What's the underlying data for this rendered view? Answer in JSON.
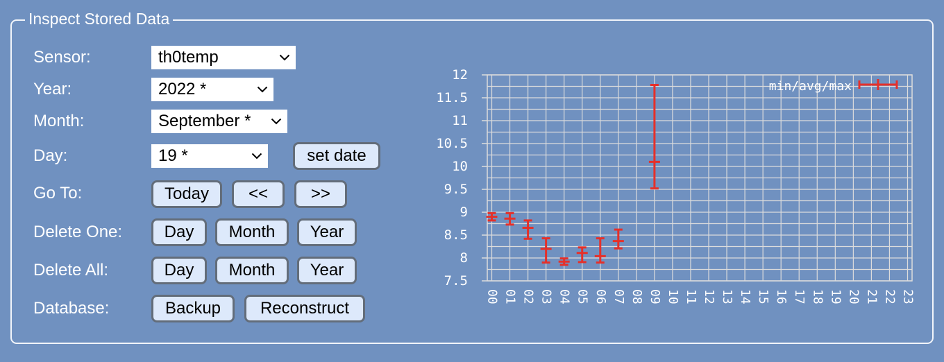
{
  "panel": {
    "title": "Inspect Stored Data"
  },
  "form": {
    "sensor": {
      "label": "Sensor:",
      "value": "th0temp"
    },
    "year": {
      "label": "Year:",
      "value": "2022 *"
    },
    "month": {
      "label": "Month:",
      "value": "September *"
    },
    "day": {
      "label": "Day:",
      "value": "19 *",
      "set_date_label": "set date"
    },
    "goto": {
      "label": "Go To:",
      "today": "Today",
      "prev": "<<",
      "next": ">>"
    },
    "delete_one": {
      "label": "Delete One:",
      "day": "Day",
      "month": "Month",
      "year": "Year"
    },
    "delete_all": {
      "label": "Delete All:",
      "day": "Day",
      "month": "Month",
      "year": "Year"
    },
    "database": {
      "label": "Database:",
      "backup": "Backup",
      "reconstruct": "Reconstruct"
    }
  },
  "colors": {
    "background": "#7091c0",
    "button_bg": "#dde9fb",
    "button_border": "#636d7a",
    "series": "#e5302a",
    "grid": "#dcdcdc"
  },
  "chart_data": {
    "type": "error-bar",
    "legend": {
      "label": "min/avg/max",
      "placement": "top-right"
    },
    "x": [
      "00",
      "01",
      "02",
      "03",
      "04",
      "05",
      "06",
      "07",
      "08",
      "09",
      "10",
      "11",
      "12",
      "13",
      "14",
      "15",
      "16",
      "17",
      "18",
      "19",
      "20",
      "21",
      "22",
      "23"
    ],
    "ylim": [
      7.5,
      12
    ],
    "yticks": [
      "12",
      "11.5",
      "11",
      "10.5",
      "10",
      "9.5",
      "9",
      "8.5",
      "8",
      "7.5"
    ],
    "grid": true,
    "series": [
      {
        "points": [
          {
            "x": "00",
            "min": 8.82,
            "avg": 8.9,
            "max": 8.98
          },
          {
            "x": "01",
            "min": 8.73,
            "avg": 8.86,
            "max": 8.98
          },
          {
            "x": "02",
            "min": 8.42,
            "avg": 8.66,
            "max": 8.82
          },
          {
            "x": "03",
            "min": 7.9,
            "avg": 8.2,
            "max": 8.43
          },
          {
            "x": "04",
            "min": 7.85,
            "avg": 7.92,
            "max": 7.99
          },
          {
            "x": "05",
            "min": 7.91,
            "avg": 8.11,
            "max": 8.23
          },
          {
            "x": "06",
            "min": 7.9,
            "avg": 8.04,
            "max": 8.43
          },
          {
            "x": "07",
            "min": 8.21,
            "avg": 8.37,
            "max": 8.62
          },
          {
            "x": "09",
            "min": 9.52,
            "avg": 10.1,
            "max": 11.78
          }
        ]
      }
    ]
  }
}
